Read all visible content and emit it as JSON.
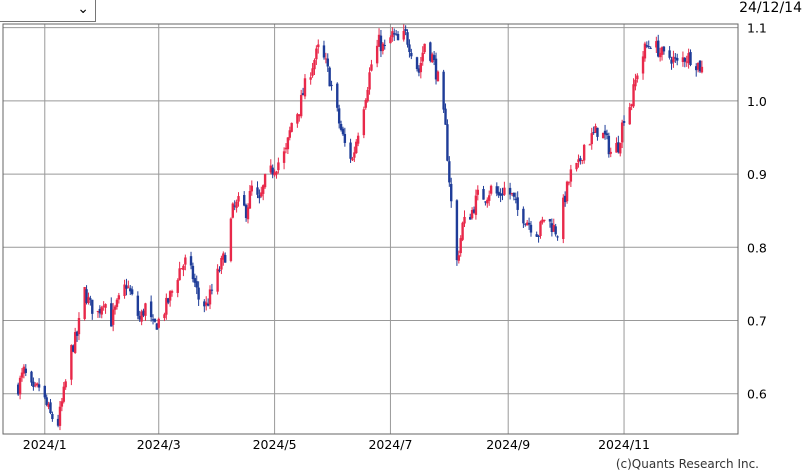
{
  "date_label": "24/12/14",
  "credit": "(c)Quants Research Inc.",
  "colors": {
    "up": "#e8294a",
    "down": "#1e3c98",
    "grid": "#999999",
    "frame": "#666666"
  },
  "chart_data": {
    "type": "candlestick",
    "title": "",
    "xlabel": "",
    "ylabel": "",
    "x_range": [
      "2023-12-10",
      "2024-12-31"
    ],
    "ylim": [
      0.545,
      1.105
    ],
    "y_ticks": [
      0.6,
      0.7,
      0.8,
      0.9,
      1.0,
      1.1
    ],
    "y_tick_labels": [
      "0.6",
      "0.7",
      "0.8",
      "0.9",
      "1.0",
      "1.1"
    ],
    "x_ticks": [
      "2024-01-01",
      "2024-03-01",
      "2024-05-01",
      "2024-07-01",
      "2024-09-01",
      "2024-11-01"
    ],
    "x_tick_labels": [
      "2024/1",
      "2024/3",
      "2024/5",
      "2024/7",
      "2024/9",
      "2024/11"
    ],
    "grid": true,
    "series": [
      {
        "close": [
          [
            "2023-12-18",
            0.61
          ],
          [
            "2023-12-21",
            0.63
          ],
          [
            "2023-12-26",
            0.6
          ],
          [
            "2023-12-29",
            0.61
          ],
          [
            "2024-01-04",
            0.57
          ],
          [
            "2024-01-08",
            0.56
          ],
          [
            "2024-01-11",
            0.6
          ],
          [
            "2024-01-15",
            0.66
          ],
          [
            "2024-01-18",
            0.68
          ],
          [
            "2024-01-22",
            0.74
          ],
          [
            "2024-01-25",
            0.72
          ],
          [
            "2024-01-29",
            0.71
          ],
          [
            "2024-02-01",
            0.73
          ],
          [
            "2024-02-05",
            0.7
          ],
          [
            "2024-02-08",
            0.72
          ],
          [
            "2024-02-13",
            0.75
          ],
          [
            "2024-02-16",
            0.73
          ],
          [
            "2024-02-20",
            0.7
          ],
          [
            "2024-02-23",
            0.72
          ],
          [
            "2024-02-27",
            0.69
          ],
          [
            "2024-03-01",
            0.7
          ],
          [
            "2024-03-05",
            0.72
          ],
          [
            "2024-03-08",
            0.74
          ],
          [
            "2024-03-12",
            0.77
          ],
          [
            "2024-03-15",
            0.78
          ],
          [
            "2024-03-19",
            0.76
          ],
          [
            "2024-03-22",
            0.73
          ],
          [
            "2024-03-26",
            0.72
          ],
          [
            "2024-03-29",
            0.74
          ],
          [
            "2024-04-02",
            0.77
          ],
          [
            "2024-04-05",
            0.79
          ],
          [
            "2024-04-09",
            0.85
          ],
          [
            "2024-04-12",
            0.86
          ],
          [
            "2024-04-16",
            0.85
          ],
          [
            "2024-04-19",
            0.88
          ],
          [
            "2024-04-23",
            0.86
          ],
          [
            "2024-04-26",
            0.89
          ],
          [
            "2024-05-01",
            0.91
          ],
          [
            "2024-05-07",
            0.93
          ],
          [
            "2024-05-10",
            0.97
          ],
          [
            "2024-05-14",
            0.99
          ],
          [
            "2024-05-17",
            1.02
          ],
          [
            "2024-05-21",
            1.05
          ],
          [
            "2024-05-24",
            1.07
          ],
          [
            "2024-05-28",
            1.05
          ],
          [
            "2024-05-31",
            1.02
          ],
          [
            "2024-06-04",
            0.97
          ],
          [
            "2024-06-07",
            0.94
          ],
          [
            "2024-06-11",
            0.92
          ],
          [
            "2024-06-14",
            0.96
          ],
          [
            "2024-06-18",
            1.01
          ],
          [
            "2024-06-21",
            1.05
          ],
          [
            "2024-06-25",
            1.08
          ],
          [
            "2024-06-28",
            1.07
          ],
          [
            "2024-07-02",
            1.09
          ],
          [
            "2024-07-05",
            1.08
          ],
          [
            "2024-07-09",
            1.09
          ],
          [
            "2024-07-12",
            1.07
          ],
          [
            "2024-07-16",
            1.04
          ],
          [
            "2024-07-19",
            1.08
          ],
          [
            "2024-07-23",
            1.06
          ],
          [
            "2024-07-26",
            1.03
          ],
          [
            "2024-07-30",
            0.96
          ],
          [
            "2024-08-02",
            0.86
          ],
          [
            "2024-08-05",
            0.78
          ],
          [
            "2024-08-08",
            0.83
          ],
          [
            "2024-08-13",
            0.85
          ],
          [
            "2024-08-16",
            0.87
          ],
          [
            "2024-08-20",
            0.87
          ],
          [
            "2024-08-23",
            0.88
          ],
          [
            "2024-08-27",
            0.87
          ],
          [
            "2024-08-30",
            0.88
          ],
          [
            "2024-09-03",
            0.87
          ],
          [
            "2024-09-06",
            0.85
          ],
          [
            "2024-09-10",
            0.84
          ],
          [
            "2024-09-13",
            0.83
          ],
          [
            "2024-09-17",
            0.82
          ],
          [
            "2024-09-20",
            0.84
          ],
          [
            "2024-09-24",
            0.83
          ],
          [
            "2024-09-27",
            0.82
          ],
          [
            "2024-10-01",
            0.87
          ],
          [
            "2024-10-04",
            0.9
          ],
          [
            "2024-10-08",
            0.91
          ],
          [
            "2024-10-11",
            0.94
          ],
          [
            "2024-10-15",
            0.95
          ],
          [
            "2024-10-18",
            0.96
          ],
          [
            "2024-10-22",
            0.95
          ],
          [
            "2024-10-25",
            0.93
          ],
          [
            "2024-10-29",
            0.94
          ],
          [
            "2024-11-01",
            0.98
          ],
          [
            "2024-11-05",
            1.0
          ],
          [
            "2024-11-08",
            1.04
          ],
          [
            "2024-11-12",
            1.07
          ],
          [
            "2024-11-15",
            1.08
          ],
          [
            "2024-11-19",
            1.07
          ],
          [
            "2024-11-22",
            1.06
          ],
          [
            "2024-11-26",
            1.06
          ],
          [
            "2024-11-29",
            1.05
          ],
          [
            "2024-12-03",
            1.06
          ],
          [
            "2024-12-06",
            1.06
          ],
          [
            "2024-12-10",
            1.05
          ],
          [
            "2024-12-13",
            1.04
          ]
        ]
      }
    ]
  }
}
